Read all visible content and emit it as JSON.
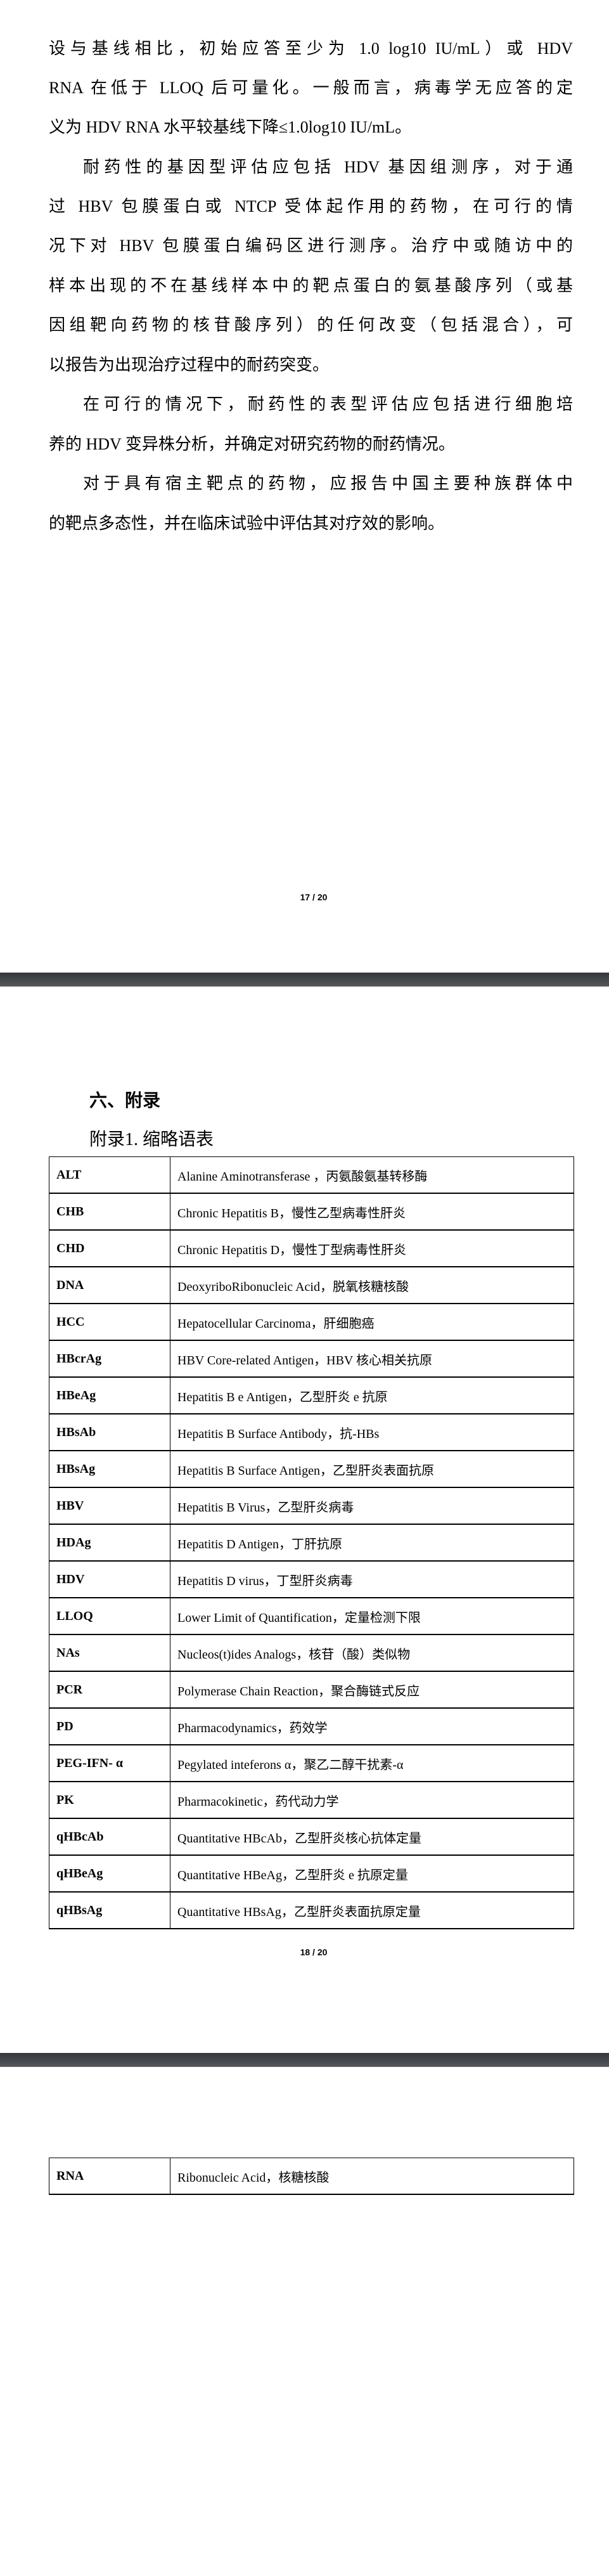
{
  "page17": {
    "lines": [
      "设与基线相比，初始应答至少为 1.0 log10 IU/mL）或 HDV",
      "RNA 在低于 LLOQ 后可量化。一般而言，病毒学无应答的定",
      "义为 HDV RNA 水平较基线下降≤1.0log10 IU/mL。",
      "耐药性的基因型评估应包括 HDV 基因组测序，对于通",
      "过 HBV 包膜蛋白或 NTCP 受体起作用的药物，在可行的情",
      "况下对 HBV 包膜蛋白编码区进行测序。治疗中或随访中的",
      "样本出现的不在基线样本中的靶点蛋白的氨基酸序列（或基",
      "因组靶向药物的核苷酸序列）的任何改变（包括混合），可",
      "以报告为出现治疗过程中的耐药突变。",
      "在可行的情况下，耐药性的表型评估应包括进行细胞培",
      "养的 HDV 变异株分析，并确定对研究药物的耐药情况。",
      "对于具有宿主靶点的药物，应报告中国主要种族群体中",
      "的靶点多态性，并在临床试验中评估其对疗效的影响。"
    ],
    "page_number": "17 / 20"
  },
  "page18": {
    "section_title": "六、附录",
    "appendix_title": "附录1. 缩略语表",
    "rows": [
      {
        "abbr": "ALT",
        "def": "Alanine Aminotransferase ，丙氨酸氨基转移酶"
      },
      {
        "abbr": "CHB",
        "def": "Chronic Hepatitis B，慢性乙型病毒性肝炎"
      },
      {
        "abbr": "CHD",
        "def": "Chronic Hepatitis D，慢性丁型病毒性肝炎"
      },
      {
        "abbr": "DNA",
        "def": "DeoxyriboRibonucleic Acid，脱氧核糖核酸"
      },
      {
        "abbr": "HCC",
        "def": "Hepatocellular Carcinoma，肝细胞癌"
      },
      {
        "abbr": "HBcrAg",
        "def": "HBV Core-related Antigen，HBV 核心相关抗原"
      },
      {
        "abbr": "HBeAg",
        "def": "Hepatitis B e Antigen，乙型肝炎 e 抗原"
      },
      {
        "abbr": "HBsAb",
        "def": "Hepatitis B Surface Antibody，抗-HBs"
      },
      {
        "abbr": "HBsAg",
        "def": "Hepatitis B Surface Antigen，乙型肝炎表面抗原"
      },
      {
        "abbr": "HBV",
        "def": "Hepatitis B Virus，乙型肝炎病毒"
      },
      {
        "abbr": "HDAg",
        "def": "Hepatitis D Antigen，丁肝抗原"
      },
      {
        "abbr": "HDV",
        "def": "Hepatitis D virus，丁型肝炎病毒"
      },
      {
        "abbr": "LLOQ",
        "def": "Lower Limit of Quantification，定量检测下限"
      },
      {
        "abbr": "NAs",
        "def": "Nucleos(t)ides Analogs，核苷（酸）类似物"
      },
      {
        "abbr": "PCR",
        "def": "Polymerase Chain Reaction，聚合酶链式反应"
      },
      {
        "abbr": "PD",
        "def": "Pharmacodynamics，药效学"
      },
      {
        "abbr": "PEG-IFN- α",
        "def": "Pegylated inteferons  α，聚乙二醇干扰素-α"
      },
      {
        "abbr": "PK",
        "def": "Pharmacokinetic，药代动力学"
      },
      {
        "abbr": "qHBcAb",
        "def": "Quantitative HBcAb，乙型肝炎核心抗体定量"
      },
      {
        "abbr": "qHBeAg",
        "def": "Quantitative HBeAg，乙型肝炎 e 抗原定量"
      },
      {
        "abbr": "qHBsAg",
        "def": "Quantitative HBsAg，乙型肝炎表面抗原定量"
      }
    ],
    "page_number": "18 / 20"
  },
  "page19": {
    "rows": [
      {
        "abbr": "RNA",
        "def": "Ribonucleic Acid，核糖核酸"
      }
    ]
  }
}
